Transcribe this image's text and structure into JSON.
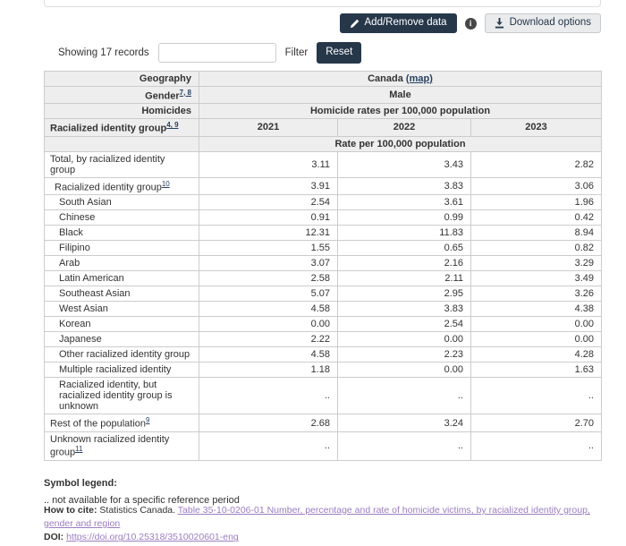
{
  "toolbar": {
    "add_remove_label": "Add/Remove data",
    "download_label": "Download options"
  },
  "filter_bar": {
    "showing_text": "Showing 17 records",
    "search_value": "",
    "filter_label": "Filter",
    "reset_label": "Reset"
  },
  "table": {
    "meta_rows": [
      {
        "label": "Geography",
        "value": "Canada",
        "value_link": "(map)"
      },
      {
        "label": "Gender",
        "sup": "7, 8",
        "value": "Male"
      },
      {
        "label": "Homicides",
        "value": "Homicide rates per 100,000 population"
      }
    ],
    "col_header": {
      "label": "Racialized identity group",
      "sup": "4, 9",
      "years": [
        "2021",
        "2022",
        "2023"
      ]
    },
    "sub_header": "Rate per 100,000 population",
    "rows": [
      {
        "label": "Total, by racialized identity group",
        "sup": "",
        "indent": 0,
        "values": [
          "3.11",
          "3.43",
          "2.82"
        ]
      },
      {
        "label": "Racialized identity group",
        "sup": "10",
        "indent": 1,
        "values": [
          "3.91",
          "3.83",
          "3.06"
        ]
      },
      {
        "label": "South Asian",
        "sup": "",
        "indent": 2,
        "values": [
          "2.54",
          "3.61",
          "1.96"
        ]
      },
      {
        "label": "Chinese",
        "sup": "",
        "indent": 2,
        "values": [
          "0.91",
          "0.99",
          "0.42"
        ]
      },
      {
        "label": "Black",
        "sup": "",
        "indent": 2,
        "values": [
          "12.31",
          "11.83",
          "8.94"
        ]
      },
      {
        "label": "Filipino",
        "sup": "",
        "indent": 2,
        "values": [
          "1.55",
          "0.65",
          "0.82"
        ]
      },
      {
        "label": "Arab",
        "sup": "",
        "indent": 2,
        "values": [
          "3.07",
          "2.16",
          "3.29"
        ]
      },
      {
        "label": "Latin American",
        "sup": "",
        "indent": 2,
        "values": [
          "2.58",
          "2.11",
          "3.49"
        ]
      },
      {
        "label": "Southeast Asian",
        "sup": "",
        "indent": 2,
        "values": [
          "5.07",
          "2.95",
          "3.26"
        ]
      },
      {
        "label": "West Asian",
        "sup": "",
        "indent": 2,
        "values": [
          "4.58",
          "3.83",
          "4.38"
        ]
      },
      {
        "label": "Korean",
        "sup": "",
        "indent": 2,
        "values": [
          "0.00",
          "2.54",
          "0.00"
        ]
      },
      {
        "label": "Japanese",
        "sup": "",
        "indent": 2,
        "values": [
          "2.22",
          "0.00",
          "0.00"
        ]
      },
      {
        "label": "Other racialized identity group",
        "sup": "",
        "indent": 2,
        "values": [
          "4.58",
          "2.23",
          "4.28"
        ]
      },
      {
        "label": "Multiple racialized identity",
        "sup": "",
        "indent": 2,
        "values": [
          "1.18",
          "0.00",
          "1.63"
        ]
      },
      {
        "label": "Racialized identity, but racialized identity group is unknown",
        "sup": "",
        "indent": 2,
        "values": [
          "..",
          "..",
          ".."
        ]
      },
      {
        "label": "Rest of the population",
        "sup": "9",
        "indent": 0,
        "values": [
          "2.68",
          "3.24",
          "2.70"
        ]
      },
      {
        "label": "Unknown racialized identity group",
        "sup": "11",
        "indent": 0,
        "values": [
          "..",
          "..",
          ".."
        ]
      }
    ]
  },
  "legend": {
    "title": "Symbol legend:",
    "item": ".. not available for a specific reference period"
  },
  "citation": {
    "how_to_cite_label": "How to cite:",
    "how_to_cite_text": " Statistics Canada. ",
    "table_link": "Table 35-10-0206-01  Number, percentage and rate of homicide victims, by racialized identity group, gender and region",
    "doi_label": "DOI:",
    "doi_link": "https://doi.org/10.25318/3510020601-eng"
  },
  "colors": {
    "navy": "#26374a",
    "header_bg": "#eeeeee",
    "link_blue": "#284162",
    "visited_purple": "#9b7dc0"
  }
}
